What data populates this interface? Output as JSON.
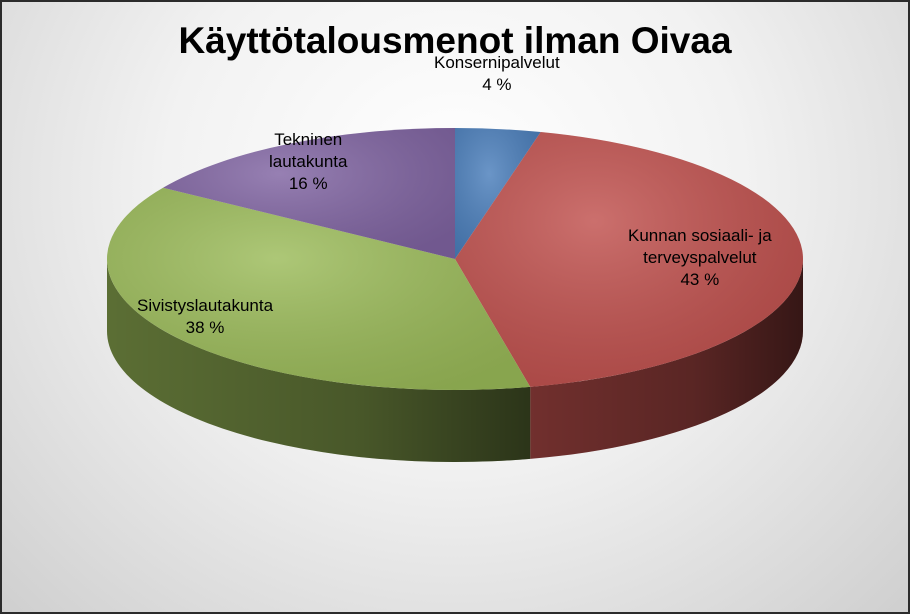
{
  "chart_data": {
    "type": "pie",
    "title": "Käyttötalousmenot ilman Oivaa",
    "three_d": true,
    "start_angle_deg": 90,
    "direction": "clockwise",
    "legend": "none",
    "slices": [
      {
        "label_lines": [
          "Konsernipalvelut"
        ],
        "value": 4,
        "value_label": "4 %",
        "color": "#4a7ebb"
      },
      {
        "label_lines": [
          "Kunnan sosiaali- ja",
          "terveyspalvelut"
        ],
        "value": 43,
        "value_label": "43 %",
        "color": "#c0504d"
      },
      {
        "label_lines": [
          "Sivistyslautakunta"
        ],
        "value": 38,
        "value_label": "38 %",
        "color": "#9bbb59"
      },
      {
        "label_lines": [
          "Tekninen",
          "lautakunta"
        ],
        "value": 16,
        "value_label": "16 %",
        "color": "#8064a2"
      }
    ]
  }
}
